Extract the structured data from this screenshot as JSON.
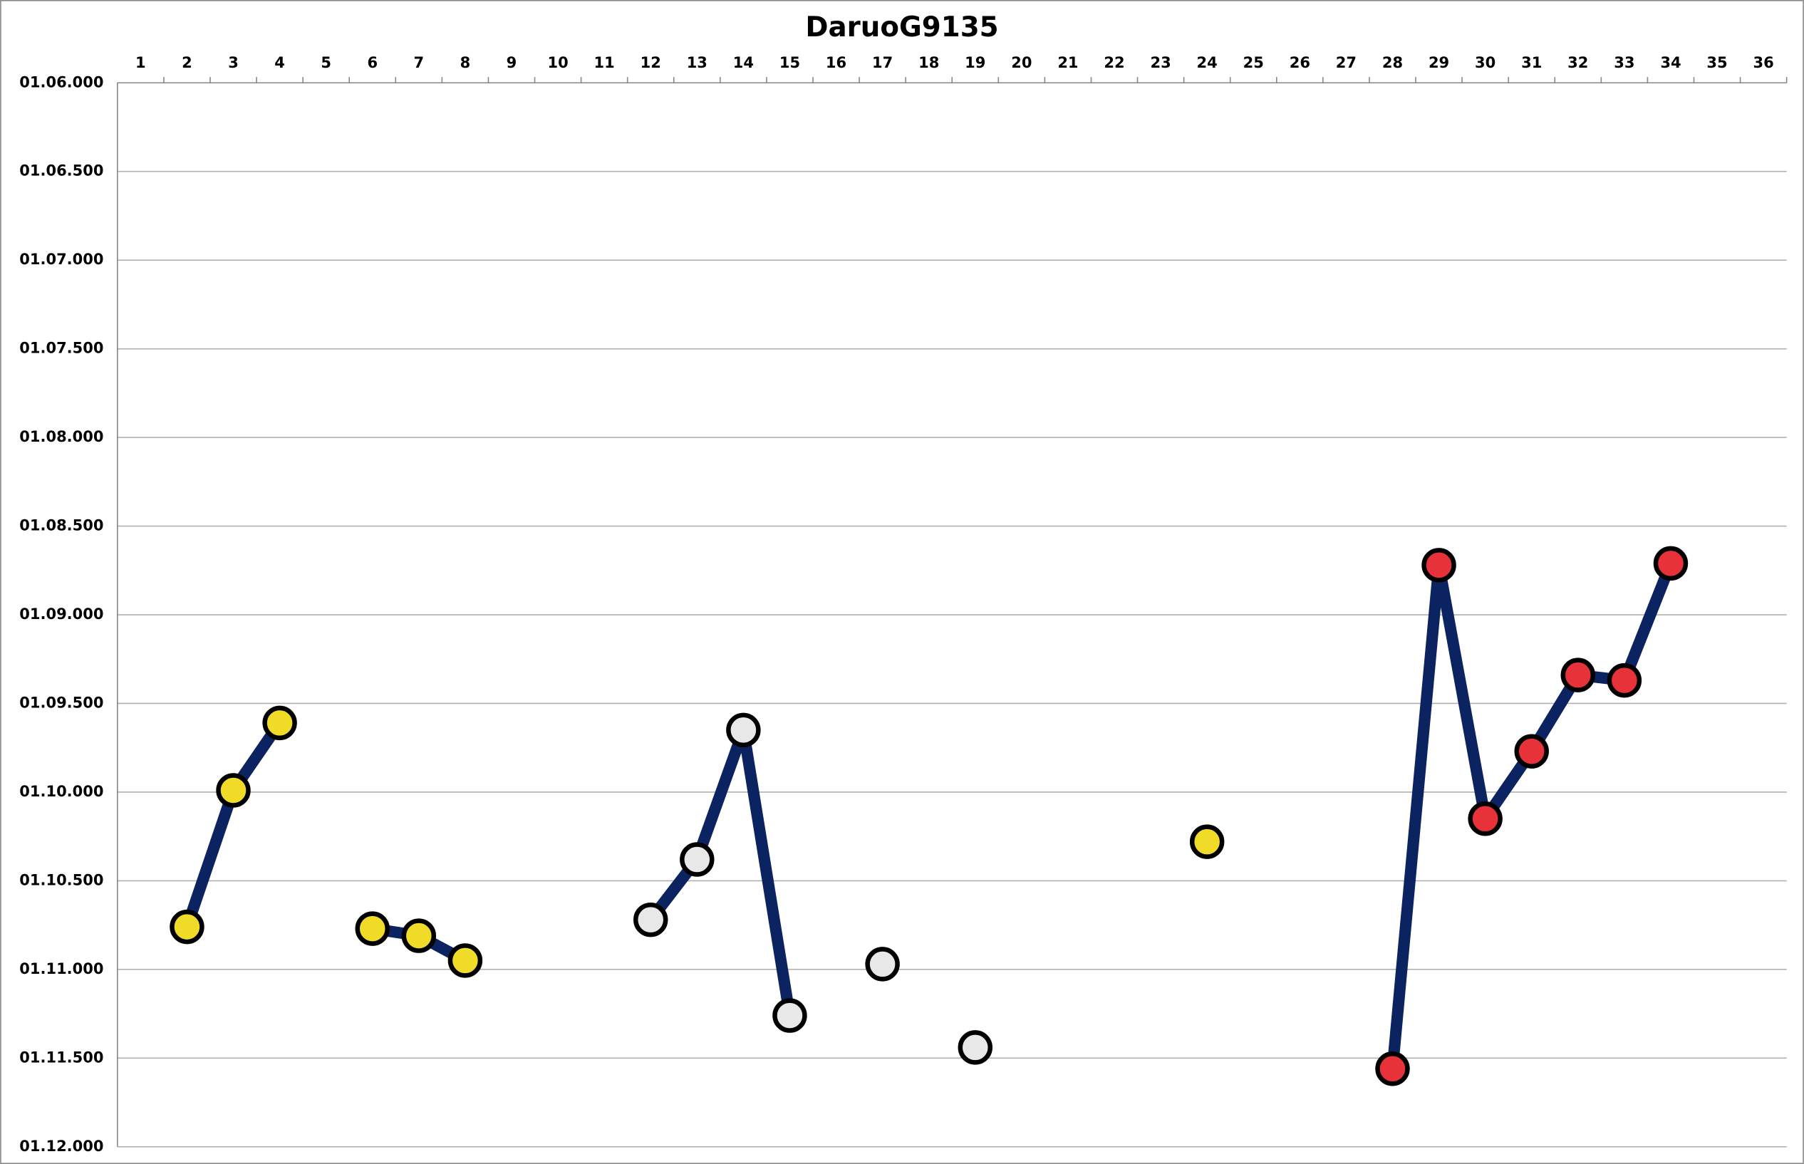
{
  "chart_data": {
    "type": "line",
    "title": "DaruoG9135",
    "x": [
      1,
      2,
      3,
      4,
      5,
      6,
      7,
      8,
      9,
      10,
      11,
      12,
      13,
      14,
      15,
      16,
      17,
      18,
      19,
      20,
      21,
      22,
      23,
      24,
      25,
      26,
      27,
      28,
      29,
      30,
      31,
      32,
      33,
      34,
      35,
      36
    ],
    "series": [
      {
        "color": "#0b2361",
        "values": [
          null,
          70.76,
          69.99,
          69.61,
          null,
          70.77,
          70.81,
          70.95,
          null,
          null,
          null,
          70.72,
          70.38,
          69.65,
          71.26,
          null,
          70.97,
          null,
          71.44,
          null,
          null,
          null,
          null,
          70.28,
          null,
          null,
          null,
          71.56,
          68.72,
          70.15,
          69.77,
          69.34,
          69.37,
          68.71,
          null,
          null
        ],
        "marker_colors": [
          null,
          "#f0dc28",
          "#f0dc28",
          "#f0dc28",
          null,
          "#f0dc28",
          "#f0dc28",
          "#f0dc28",
          null,
          null,
          null,
          "#e8e8e8",
          "#e8e8e8",
          "#e8e8e8",
          "#e8e8e8",
          null,
          "#e8e8e8",
          null,
          "#e8e8e8",
          null,
          null,
          null,
          null,
          "#f0dc28",
          null,
          null,
          null,
          "#e8323a",
          "#e8323a",
          "#e8323a",
          "#e8323a",
          "#e8323a",
          "#e8323a",
          "#e8323a",
          null,
          null
        ]
      }
    ],
    "ylim": [
      66,
      72
    ],
    "y_inverted": true,
    "yticks": [
      {
        "value": 66,
        "label": "01.06.000"
      },
      {
        "value": 66.5,
        "label": "01.06.500"
      },
      {
        "value": 67,
        "label": "01.07.000"
      },
      {
        "value": 67.5,
        "label": "01.07.500"
      },
      {
        "value": 68,
        "label": "01.08.000"
      },
      {
        "value": 68.5,
        "label": "01.08.500"
      },
      {
        "value": 69,
        "label": "01.09.000"
      },
      {
        "value": 69.5,
        "label": "01.09.500"
      },
      {
        "value": 70,
        "label": "01.10.000"
      },
      {
        "value": 70.5,
        "label": "01.10.500"
      },
      {
        "value": 71,
        "label": "01.11.000"
      },
      {
        "value": 71.5,
        "label": "01.11.500"
      },
      {
        "value": 72,
        "label": "01.12.000"
      }
    ],
    "grid": true
  }
}
